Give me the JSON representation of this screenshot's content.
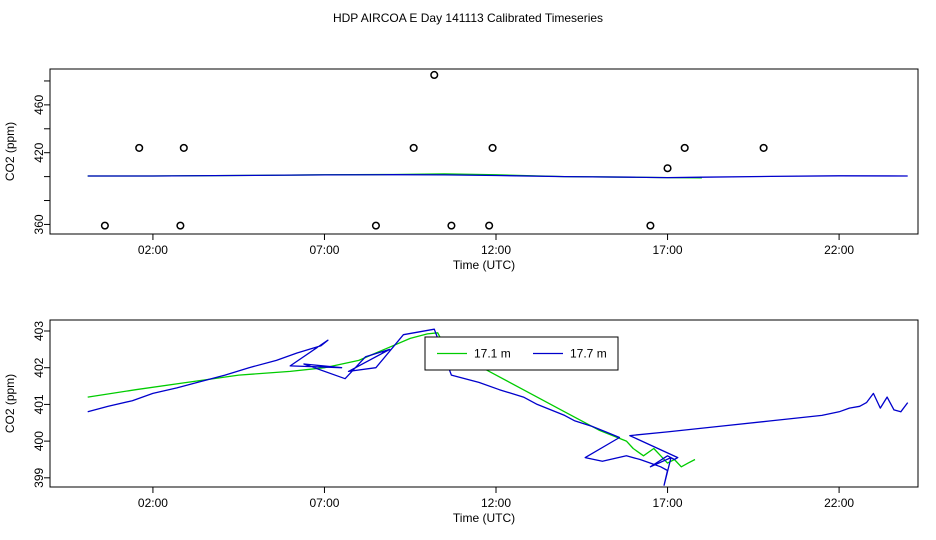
{
  "title": "HDP AIRCOA E  Day 141113  Calibrated Timeseries",
  "chart_data": [
    {
      "type": "scatter",
      "xlabel": "Time (UTC)",
      "ylabel": "CO2 (ppm)",
      "xlim": [
        -1.0,
        24.3
      ],
      "ylim": [
        352,
        490
      ],
      "x_ticks": [
        2,
        7,
        12,
        17,
        22
      ],
      "x_tick_labels": [
        "02:00",
        "07:00",
        "12:00",
        "17:00",
        "22:00"
      ],
      "y_ticks": [
        360,
        380,
        400,
        420,
        440,
        460,
        480
      ],
      "y_tick_labels": [
        "360",
        "",
        "",
        "420",
        "",
        "460",
        ""
      ],
      "grid": false,
      "calibration_points": [
        {
          "x": 0.6,
          "y": 359
        },
        {
          "x": 1.6,
          "y": 424
        },
        {
          "x": 2.8,
          "y": 359
        },
        {
          "x": 2.9,
          "y": 424
        },
        {
          "x": 8.5,
          "y": 359
        },
        {
          "x": 9.6,
          "y": 424
        },
        {
          "x": 10.2,
          "y": 485
        },
        {
          "x": 10.7,
          "y": 359
        },
        {
          "x": 11.8,
          "y": 359
        },
        {
          "x": 11.9,
          "y": 424
        },
        {
          "x": 16.5,
          "y": 359
        },
        {
          "x": 17.0,
          "y": 407
        },
        {
          "x": 17.5,
          "y": 424
        },
        {
          "x": 19.8,
          "y": 424
        }
      ],
      "series": [
        {
          "color": "#00cc00",
          "x": [
            0.1,
            2,
            5,
            7,
            9,
            10.5,
            12,
            14,
            16,
            17,
            18
          ],
          "y": [
            400.5,
            400.5,
            401,
            401.5,
            401.8,
            402.3,
            401.5,
            400,
            399.5,
            399.2,
            399
          ]
        },
        {
          "color": "#0000cc",
          "x": [
            0.1,
            2,
            5,
            7,
            9,
            10.5,
            12,
            14,
            16,
            17,
            18,
            20,
            22,
            24
          ],
          "y": [
            400.5,
            400.5,
            401,
            401.4,
            401.6,
            401.4,
            400.9,
            400,
            399.5,
            399.2,
            399.5,
            400.2,
            400.7,
            400.5
          ]
        }
      ]
    },
    {
      "type": "line",
      "xlabel": "Time (UTC)",
      "ylabel": "CO2 (ppm)",
      "xlim": [
        -1.0,
        24.3
      ],
      "ylim": [
        398.75,
        403.3
      ],
      "x_ticks": [
        2,
        7,
        12,
        17,
        22
      ],
      "x_tick_labels": [
        "02:00",
        "07:00",
        "12:00",
        "17:00",
        "22:00"
      ],
      "y_ticks": [
        399,
        400,
        401,
        402,
        403
      ],
      "y_tick_labels": [
        "399",
        "400",
        "401",
        "402",
        "403"
      ],
      "grid": false,
      "legend": {
        "placement": "top-center",
        "entries": [
          {
            "label": "17.1 m",
            "color": "#00cc00"
          },
          {
            "label": "17.7 m",
            "color": "#0000cc"
          }
        ]
      },
      "series": [
        {
          "name": "17.1 m",
          "color": "#00cc00",
          "x": [
            0.1,
            1.5,
            3.0,
            4.5,
            6.0,
            7.0,
            8.0,
            8.5,
            9.0,
            9.5,
            10.0,
            10.3,
            10.5,
            11.0,
            12.0,
            13.0,
            14.0,
            15.0,
            15.8,
            16.0,
            16.3,
            16.6,
            16.8,
            17.0,
            17.2,
            17.4,
            17.6,
            17.8
          ],
          "y": [
            401.2,
            401.4,
            401.6,
            401.8,
            401.9,
            402.0,
            402.2,
            402.4,
            402.6,
            402.8,
            402.92,
            402.95,
            402.6,
            402.3,
            401.8,
            401.3,
            400.8,
            400.3,
            400.0,
            399.8,
            399.6,
            399.8,
            399.6,
            399.4,
            399.5,
            399.3,
            399.4,
            399.5
          ]
        },
        {
          "name": "17.7 m",
          "color": "#0000cc",
          "x": [
            0.1,
            0.7,
            1.4,
            2.0,
            2.7,
            3.3,
            4.1,
            4.8,
            5.6,
            6.2,
            6.9,
            7.1,
            6.0,
            7.5,
            6.4,
            7.6,
            8.2,
            8.9,
            7.7,
            8.5,
            9.3,
            10.2,
            10.7,
            11.5,
            12.1,
            12.8,
            13.2,
            13.6,
            14.0,
            14.3,
            14.8,
            15.2,
            15.6,
            14.6,
            15.1,
            15.8,
            16.2,
            16.5,
            16.8,
            17.0,
            16.9,
            17.1,
            16.5,
            17.0,
            17.2,
            17.3,
            15.9,
            17.0,
            18.5,
            20.0,
            21.5,
            22.0,
            22.3,
            22.6,
            22.8,
            23.0,
            23.2,
            23.4,
            23.6,
            23.8,
            24.0
          ],
          "y": [
            400.8,
            400.95,
            401.1,
            401.3,
            401.45,
            401.6,
            401.8,
            402.0,
            402.2,
            402.4,
            402.6,
            402.75,
            402.05,
            402.0,
            402.1,
            401.7,
            402.3,
            402.5,
            401.9,
            402.0,
            402.9,
            403.05,
            401.8,
            401.6,
            401.4,
            401.2,
            401.0,
            400.85,
            400.7,
            400.55,
            400.4,
            400.25,
            400.1,
            399.55,
            399.45,
            399.6,
            399.5,
            399.4,
            399.3,
            399.2,
            398.8,
            399.55,
            399.3,
            399.6,
            399.5,
            399.55,
            400.15,
            400.25,
            400.4,
            400.55,
            400.7,
            400.8,
            400.9,
            400.95,
            401.05,
            401.3,
            400.9,
            401.2,
            400.85,
            400.8,
            401.05
          ]
        }
      ]
    }
  ]
}
